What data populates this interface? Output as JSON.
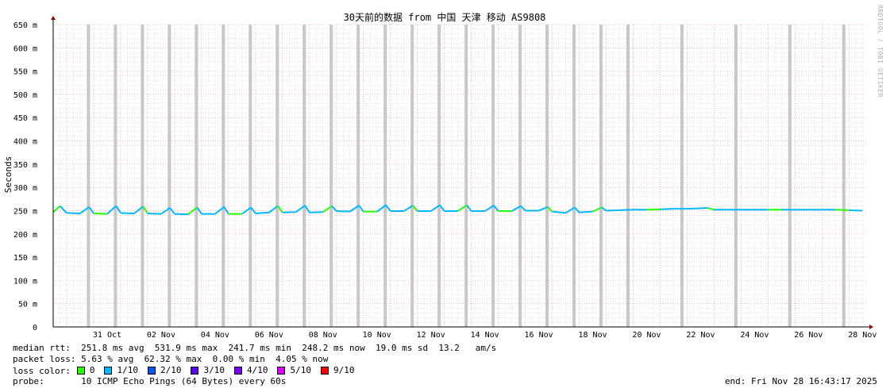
{
  "chart_data": {
    "type": "line",
    "title": "30天前的数据 from 中国 天津 移动 AS9808",
    "ylabel": "Seconds",
    "xlabel": "",
    "ylim": [
      0,
      650
    ],
    "ytick_labels": [
      "0",
      "50 m",
      "100 m",
      "150 m",
      "200 m",
      "250 m",
      "300 m",
      "350 m",
      "400 m",
      "450 m",
      "500 m",
      "550 m",
      "600 m",
      "650 m"
    ],
    "xlim": [
      "2025-10-29T12:00",
      "2025-11-28T16:43"
    ],
    "xtick_labels": [
      "31 Oct",
      "02 Nov",
      "04 Nov",
      "06 Nov",
      "08 Nov",
      "10 Nov",
      "12 Nov",
      "14 Nov",
      "16 Nov",
      "18 Nov",
      "20 Nov",
      "22 Nov",
      "24 Nov",
      "26 Nov",
      "28 Nov"
    ],
    "grid": true,
    "series": [
      {
        "name": "median rtt",
        "x": [
          "2025-10-29T12:00",
          "2025-10-29T18:00",
          "2025-10-30T00:00",
          "2025-10-30T12:00",
          "2025-10-30T20:00",
          "2025-10-31T00:00",
          "2025-10-31T12:00",
          "2025-10-31T20:00",
          "2025-11-01T00:00",
          "2025-11-01T12:00",
          "2025-11-01T20:00",
          "2025-11-02T00:00",
          "2025-11-02T12:00",
          "2025-11-02T20:00",
          "2025-11-03T00:00",
          "2025-11-03T12:00",
          "2025-11-03T20:00",
          "2025-11-04T00:00",
          "2025-11-04T12:00",
          "2025-11-04T20:00",
          "2025-11-05T00:00",
          "2025-11-05T12:00",
          "2025-11-05T20:00",
          "2025-11-06T00:00",
          "2025-11-06T12:00",
          "2025-11-06T20:00",
          "2025-11-07T00:00",
          "2025-11-07T12:00",
          "2025-11-07T20:00",
          "2025-11-08T00:00",
          "2025-11-08T12:00",
          "2025-11-08T20:00",
          "2025-11-09T00:00",
          "2025-11-09T12:00",
          "2025-11-09T20:00",
          "2025-11-10T00:00",
          "2025-11-10T12:00",
          "2025-11-10T20:00",
          "2025-11-11T00:00",
          "2025-11-11T12:00",
          "2025-11-11T20:00",
          "2025-11-12T00:00",
          "2025-11-12T12:00",
          "2025-11-12T20:00",
          "2025-11-13T00:00",
          "2025-11-13T12:00",
          "2025-11-13T20:00",
          "2025-11-14T00:00",
          "2025-11-14T12:00",
          "2025-11-14T20:00",
          "2025-11-15T00:00",
          "2025-11-15T12:00",
          "2025-11-15T20:00",
          "2025-11-16T00:00",
          "2025-11-16T12:00",
          "2025-11-16T20:00",
          "2025-11-17T00:00",
          "2025-11-17T12:00",
          "2025-11-17T20:00",
          "2025-11-18T00:00",
          "2025-11-18T12:00",
          "2025-11-18T20:00",
          "2025-11-19T00:00",
          "2025-11-19T12:00",
          "2025-11-20T00:00",
          "2025-11-20T12:00",
          "2025-11-21T00:00",
          "2025-11-21T12:00",
          "2025-11-22T00:00",
          "2025-11-22T12:00",
          "2025-11-22T18:00",
          "2025-11-23T00:00",
          "2025-11-23T12:00",
          "2025-11-24T00:00",
          "2025-11-24T12:00",
          "2025-11-25T00:00",
          "2025-11-25T12:00",
          "2025-11-26T00:00",
          "2025-11-26T12:00",
          "2025-11-27T00:00",
          "2025-11-27T12:00",
          "2025-11-28T00:00",
          "2025-11-28T12:00"
        ],
        "values": [
          247,
          260,
          245,
          244,
          258,
          244,
          243,
          260,
          245,
          244,
          259,
          244,
          243,
          256,
          243,
          242,
          257,
          243,
          243,
          258,
          243,
          243,
          257,
          244,
          246,
          260,
          246,
          247,
          261,
          246,
          247,
          260,
          249,
          248,
          261,
          248,
          248,
          262,
          249,
          249,
          261,
          249,
          249,
          262,
          249,
          249,
          262,
          249,
          249,
          261,
          249,
          249,
          260,
          250,
          250,
          258,
          248,
          245,
          257,
          246,
          248,
          257,
          250,
          251,
          252,
          252,
          253,
          254,
          254,
          255,
          256,
          252,
          252,
          252,
          252,
          252,
          252,
          252,
          252,
          252,
          252,
          251,
          250
        ]
      }
    ],
    "stats": {
      "median_rtt": "median rtt:  251.8 ms avg  531.9 ms max  241.7 ms min  248.2 ms now  19.0 ms sd  13.2   am/s",
      "packet_loss": "packet loss: 5.63 % avg  62.32 % max  0.00 % min  4.05 % now",
      "probe": "probe:       10 ICMP Echo Pings (64 Bytes) every 60s",
      "end": "end: Fri Nov 28 16:43:17 2025"
    },
    "loss_color": {
      "label": "loss color:",
      "items": [
        {
          "label": "0",
          "color": "#26ff00"
        },
        {
          "label": "1/10",
          "color": "#00b8ff"
        },
        {
          "label": "2/10",
          "color": "#0059ff"
        },
        {
          "label": "3/10",
          "color": "#5e00ff"
        },
        {
          "label": "4/10",
          "color": "#7e00ff"
        },
        {
          "label": "5/10",
          "color": "#dd00ff"
        },
        {
          "label": "9/10",
          "color": "#ff0000"
        }
      ]
    },
    "watermark": "RRDTOOL / TOBI OETIKER",
    "colors": {
      "grid_minor": "#e8c8c8",
      "grid_major": "#e09090",
      "loss_band": "#c8c8c8",
      "smoke": "#aaaaaa",
      "axis": "#000000"
    }
  }
}
